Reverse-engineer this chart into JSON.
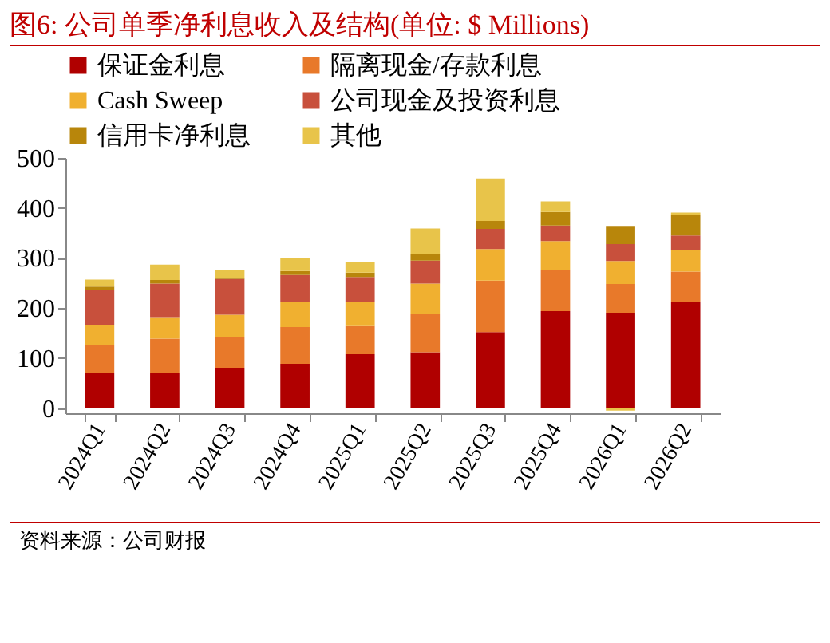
{
  "chart_data": {
    "type": "bar",
    "title": "图6:   公司单季净利息收入及结构(单位: $ Millions)",
    "categories": [
      "2024Q1",
      "2024Q2",
      "2024Q3",
      "2024Q4",
      "2025Q1",
      "2025Q2",
      "2025Q3",
      "2025Q4",
      "2026Q1",
      "2026Q2"
    ],
    "stacked": true,
    "legend": "top",
    "series": [
      {
        "name": "保证金利息",
        "color": "#b00000",
        "values": [
          70,
          70,
          81,
          89,
          108,
          112,
          152,
          194,
          191,
          213
        ]
      },
      {
        "name": "隔离现金/存款利息",
        "color": "#e8792a",
        "values": [
          57,
          69,
          61,
          73,
          56,
          77,
          103,
          83,
          57,
          60
        ]
      },
      {
        "name": "Cash Sweep",
        "color": "#f0b030",
        "values": [
          39,
          43,
          45,
          50,
          48,
          60,
          63,
          57,
          46,
          42
        ]
      },
      {
        "name": "公司现金及投资利息",
        "color": "#c8503c",
        "values": [
          71,
          67,
          71,
          54,
          50,
          46,
          40,
          31,
          34,
          30
        ]
      },
      {
        "name": "信用卡净利息",
        "color": "#b8860b",
        "values": [
          6,
          7,
          2,
          8,
          9,
          13,
          16,
          27,
          36,
          41
        ]
      },
      {
        "name": "其他",
        "color": "#e8c44a",
        "values": [
          14,
          31,
          16,
          25,
          22,
          51,
          85,
          21,
          -5,
          5
        ]
      }
    ],
    "ylim": [
      -10,
      500
    ],
    "yticks": [
      0,
      100,
      200,
      300,
      400,
      500
    ],
    "grid": false,
    "annotations": [
      "资料来源：公司财报"
    ]
  }
}
